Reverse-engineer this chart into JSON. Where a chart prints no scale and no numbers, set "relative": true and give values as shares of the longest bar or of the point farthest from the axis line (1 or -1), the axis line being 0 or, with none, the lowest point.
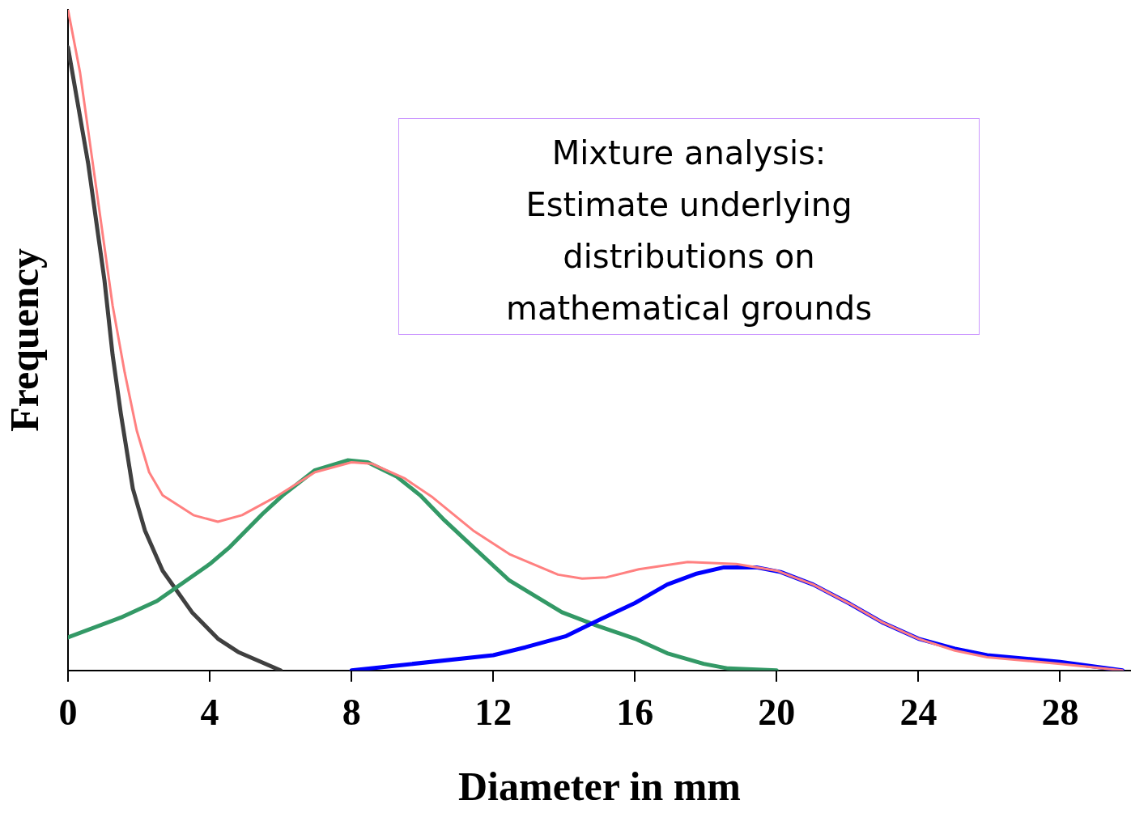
{
  "chart_data": {
    "type": "line",
    "relative": true,
    "xlabel": "Diameter in mm",
    "ylabel": "Frequency",
    "xlim": [
      0,
      30
    ],
    "xticks": [
      0,
      4,
      8,
      12,
      16,
      20,
      24,
      28
    ],
    "grid": false,
    "legend": false,
    "marker": "none",
    "line_style": "solid",
    "annotations": [
      "Mixture analysis:\nEstimate underlying\ndistributions on\nmathematical grounds"
    ],
    "series": [
      {
        "color": "#404040",
        "x": [
          0,
          0.57,
          1.03,
          1.26,
          1.49,
          1.83,
          2.17,
          2.67,
          3.5,
          4.23,
          4.8,
          6
        ],
        "values": [
          0.943,
          0.767,
          0.59,
          0.477,
          0.389,
          0.275,
          0.212,
          0.151,
          0.088,
          0.048,
          0.028,
          0
        ]
      },
      {
        "color": "#339966",
        "x": [
          0,
          1.49,
          2.51,
          4,
          4.57,
          5.49,
          6.06,
          6.97,
          7.89,
          8.46,
          9.26,
          9.94,
          10.63,
          11.43,
          12.46,
          13.94,
          14.97,
          16,
          16.91,
          17.94,
          18.63,
          20
        ],
        "values": [
          0.05,
          0.08,
          0.105,
          0.161,
          0.187,
          0.237,
          0.265,
          0.303,
          0.318,
          0.315,
          0.294,
          0.265,
          0.227,
          0.187,
          0.136,
          0.088,
          0.067,
          0.048,
          0.026,
          0.01,
          0.003,
          0
        ]
      },
      {
        "color": "#0000ff",
        "x": [
          8,
          12,
          12.91,
          14.06,
          14.97,
          16,
          16.91,
          17.71,
          18.51,
          19.43,
          20.11,
          21.03,
          22.06,
          22.97,
          24,
          25.03,
          25.94,
          28,
          29.76
        ],
        "values": [
          0,
          0.023,
          0.035,
          0.052,
          0.076,
          0.102,
          0.13,
          0.146,
          0.156,
          0.156,
          0.149,
          0.13,
          0.101,
          0.073,
          0.048,
          0.033,
          0.023,
          0.013,
          0
        ]
      },
      {
        "color": "#ff8080",
        "x": [
          0,
          0.34,
          0.8,
          1.26,
          1.6,
          1.94,
          2.29,
          2.67,
          3.54,
          4.23,
          4.91,
          5.94,
          6.97,
          8,
          8.57,
          9.49,
          10.29,
          11.43,
          12.46,
          13.83,
          14.51,
          15.2,
          16.11,
          17.49,
          18.86,
          20,
          21.03,
          22.06,
          22.97,
          24,
          25.03,
          25.94,
          28,
          29.76
        ],
        "values": [
          1,
          0.905,
          0.729,
          0.552,
          0.451,
          0.363,
          0.3,
          0.265,
          0.235,
          0.225,
          0.235,
          0.265,
          0.3,
          0.315,
          0.313,
          0.291,
          0.262,
          0.212,
          0.176,
          0.145,
          0.139,
          0.141,
          0.153,
          0.164,
          0.161,
          0.151,
          0.13,
          0.101,
          0.073,
          0.048,
          0.03,
          0.02,
          0.01,
          0
        ]
      }
    ]
  }
}
